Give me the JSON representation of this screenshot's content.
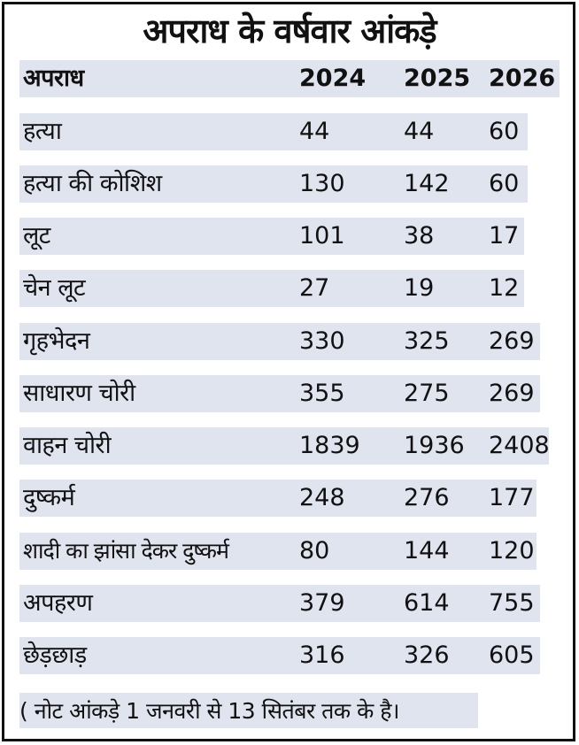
{
  "title": "अपराध के वर्षवार आंकड़े",
  "header": [
    "अपराध",
    "2024",
    "2025",
    "2026"
  ],
  "rows": [
    [
      "हत्या",
      "44",
      "44",
      "60"
    ],
    [
      "हत्या की कोशिश",
      "130",
      "142",
      "60"
    ],
    [
      "लूट",
      "101",
      "38",
      "17"
    ],
    [
      "चेन लूट",
      "27",
      "19",
      "12"
    ],
    [
      "गृहभेदन",
      "330",
      "325",
      "269"
    ],
    [
      "साधारण चोरी",
      "355",
      "275",
      "269"
    ],
    [
      "वाहन चोरी",
      "1839",
      "1936",
      "2408"
    ],
    [
      "दुष्कर्म",
      "248",
      "276",
      "177"
    ],
    [
      "शादी का झांसा देकर दुष्कर्म",
      "80",
      "144",
      "120"
    ],
    [
      "अपहरण",
      "379",
      "614",
      "755"
    ],
    [
      "छेड़छाड़",
      "316",
      "326",
      "605"
    ]
  ],
  "note": "( नोट आंकड़े 1 जनवरी से 13 सितंबर तक के है।",
  "colors": {
    "band": "#dfe4ef",
    "text": "#111111",
    "border": "#111111"
  }
}
